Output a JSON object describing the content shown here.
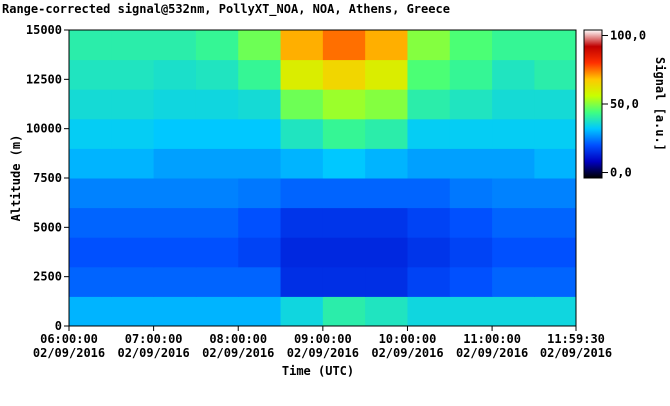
{
  "chart_data": {
    "type": "heatmap",
    "title": "Range-corrected signal@532nm, PollyXT_NOA, NOA, Athens, Greece",
    "x_label": "Time (UTC)",
    "y_label": "Altitude (m)",
    "colorbar_label": "Signal [a.u.]",
    "xlim": [
      6,
      11.991667
    ],
    "ylim": [
      0,
      15000
    ],
    "xticks": [
      {
        "value": 6,
        "label": [
          "06:00:00",
          "02/09/2016"
        ]
      },
      {
        "value": 7,
        "label": [
          "07:00:00",
          "02/09/2016"
        ]
      },
      {
        "value": 8,
        "label": [
          "08:00:00",
          "02/09/2016"
        ]
      },
      {
        "value": 9,
        "label": [
          "09:00:00",
          "02/09/2016"
        ]
      },
      {
        "value": 10,
        "label": [
          "10:00:00",
          "02/09/2016"
        ]
      },
      {
        "value": 11,
        "label": [
          "11:00:00",
          "02/09/2016"
        ]
      },
      {
        "value": 11.991667,
        "label": [
          "11:59:30",
          "02/09/2016"
        ]
      }
    ],
    "yticks": [
      0,
      2500,
      5000,
      7500,
      10000,
      12500,
      15000
    ],
    "x_edges": [
      6,
      6.5,
      7,
      7.5,
      8,
      8.5,
      9,
      9.5,
      10,
      10.5,
      11,
      11.5,
      11.991667
    ],
    "y_edges": [
      0,
      1500,
      3000,
      4500,
      6000,
      7500,
      9000,
      10500,
      12000,
      13500,
      15000
    ],
    "z": [
      [
        30,
        30,
        30,
        30,
        30,
        35,
        40,
        38,
        35,
        35,
        35,
        35
      ],
      [
        22,
        22,
        22,
        22,
        22,
        15,
        15,
        15,
        18,
        20,
        22,
        22
      ],
      [
        20,
        20,
        20,
        20,
        18,
        14,
        14,
        14,
        16,
        18,
        20,
        20
      ],
      [
        22,
        22,
        22,
        22,
        20,
        16,
        16,
        16,
        18,
        20,
        22,
        22
      ],
      [
        25,
        25,
        25,
        25,
        24,
        22,
        22,
        22,
        22,
        24,
        25,
        25
      ],
      [
        30,
        30,
        28,
        28,
        28,
        30,
        32,
        30,
        28,
        28,
        28,
        30
      ],
      [
        33,
        33,
        32,
        32,
        32,
        38,
        42,
        40,
        33,
        33,
        33,
        33
      ],
      [
        36,
        36,
        35,
        35,
        36,
        48,
        52,
        50,
        40,
        38,
        36,
        36
      ],
      [
        38,
        38,
        37,
        38,
        42,
        60,
        65,
        60,
        45,
        42,
        38,
        40
      ],
      [
        40,
        40,
        40,
        42,
        48,
        70,
        75,
        70,
        50,
        45,
        42,
        42
      ]
    ],
    "zlim": [
      -4,
      104
    ],
    "zticks": [
      {
        "value": 0,
        "label": "0,0"
      },
      {
        "value": 50,
        "label": "50,0"
      },
      {
        "value": 100,
        "label": "100,0"
      }
    ],
    "colorscale": [
      "#000000",
      "#0000c0",
      "#0050ff",
      "#00c8ff",
      "#40ff80",
      "#c8ff00",
      "#ffc800",
      "#ff3000",
      "#c00000",
      "#ffffff"
    ]
  }
}
